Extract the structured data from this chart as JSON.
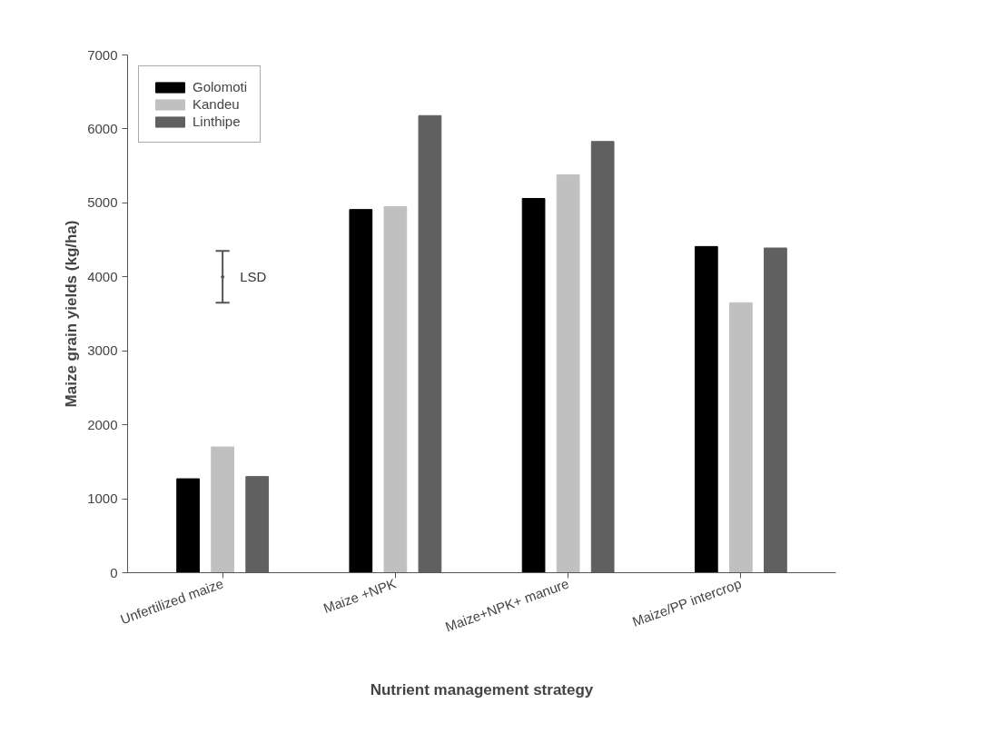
{
  "chart_data": {
    "type": "bar",
    "xlabel": "Nutrient management strategy",
    "ylabel": "Maize grain yields (kg/ha)",
    "categories": [
      "Unfertilized maize",
      "Maize +NPK",
      "Maize+NPK+ manure",
      "Maize/PP intercrop"
    ],
    "series": [
      {
        "name": "Golomoti",
        "color": "#000000",
        "values": [
          1270,
          4910,
          5060,
          4410
        ]
      },
      {
        "name": "Kandeu",
        "color": "#c0c0c0",
        "values": [
          1700,
          4950,
          5380,
          3650
        ]
      },
      {
        "name": "Linthipe",
        "color": "#606060",
        "values": [
          1300,
          6180,
          5830,
          4390
        ]
      },
      {
        "type": "scatter",
        "marker": "none",
        "color": "#555555",
        "values": [
          4000,
          null,
          null,
          null
        ],
        "errors": [
          [
            3650,
            4350
          ],
          null,
          null,
          null
        ]
      }
    ],
    "ylim": [
      0,
      7000
    ],
    "yticks": [
      0,
      1000,
      2000,
      3000,
      4000,
      5000,
      6000,
      7000
    ],
    "annotations": [
      "LSD"
    ],
    "grid": false,
    "legend": "top left"
  }
}
